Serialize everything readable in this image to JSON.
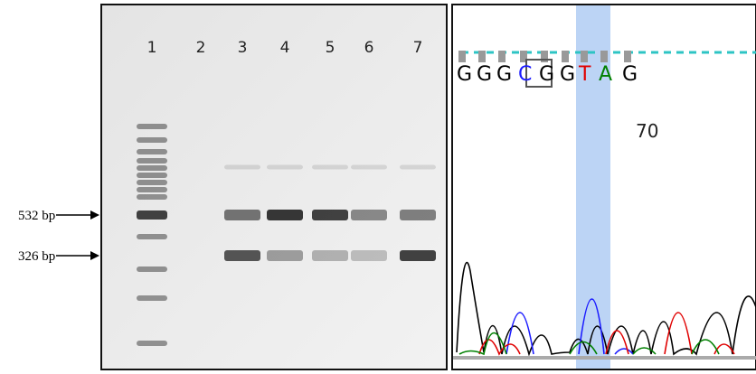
{
  "gel": {
    "lanes": [
      "1",
      "2",
      "3",
      "4",
      "5",
      "6",
      "7"
    ],
    "markers": [
      "532 bp",
      "326 bp"
    ]
  },
  "chromatogram": {
    "bases": [
      "G",
      "G",
      "G",
      "C",
      "G",
      "G",
      "T",
      "A",
      "G"
    ],
    "position_label": "70"
  }
}
